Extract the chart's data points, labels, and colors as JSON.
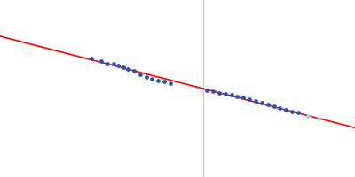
{
  "background_color": "#ffffff",
  "vertical_line_x": 0.0,
  "vertical_line_color": "#aaccee",
  "line_slope": -0.13,
  "line_intercept": 0.0,
  "line_color": "#ff0000",
  "line_width": 1.2,
  "points": [
    [
      -0.55,
      0.075
    ],
    [
      -0.5,
      0.068
    ],
    [
      -0.47,
      0.062
    ],
    [
      -0.44,
      0.062
    ],
    [
      -0.42,
      0.057
    ],
    [
      -0.39,
      0.052
    ],
    [
      -0.37,
      0.048
    ],
    [
      -0.34,
      0.045
    ],
    [
      -0.31,
      0.035
    ],
    [
      -0.28,
      0.028
    ],
    [
      -0.25,
      0.024
    ],
    [
      -0.22,
      0.02
    ],
    [
      -0.19,
      0.017
    ],
    [
      -0.16,
      0.014
    ],
    [
      0.02,
      -0.004
    ],
    [
      0.05,
      -0.007
    ],
    [
      0.08,
      -0.01
    ],
    [
      0.11,
      -0.013
    ],
    [
      0.14,
      -0.016
    ],
    [
      0.17,
      -0.02
    ],
    [
      0.2,
      -0.023
    ],
    [
      0.23,
      -0.026
    ],
    [
      0.26,
      -0.031
    ],
    [
      0.29,
      -0.036
    ],
    [
      0.32,
      -0.04
    ],
    [
      0.35,
      -0.043
    ],
    [
      0.38,
      -0.048
    ],
    [
      0.41,
      -0.052
    ],
    [
      0.44,
      -0.057
    ],
    [
      0.47,
      -0.06
    ]
  ],
  "faded_points": [
    [
      0.52,
      -0.068
    ],
    [
      0.57,
      -0.075
    ]
  ],
  "point_color": "#2255bb",
  "point_size": 12,
  "faded_point_color": "#aaccdd",
  "faded_point_size": 12,
  "xlim": [
    -1.0,
    0.75
  ],
  "ylim": [
    -0.22,
    0.22
  ],
  "figsize": [
    4.0,
    2.0
  ],
  "dpi": 100
}
